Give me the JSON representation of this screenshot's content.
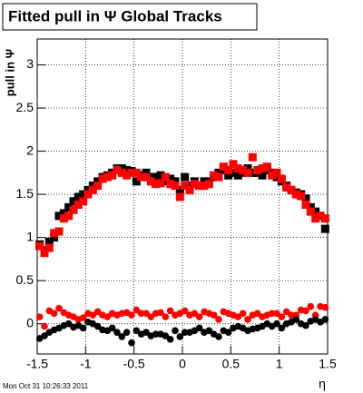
{
  "chart_data": {
    "type": "scatter",
    "title": "Fitted pull in  Ψ   Global Tracks",
    "y_label": "pull in Ψ",
    "x_label": "η",
    "timestamp": "Mon Oct 31 10:26:33 2011",
    "xlim": [
      -1.5,
      1.5
    ],
    "ylim": [
      -0.35,
      3.3
    ],
    "xticks": [
      -1.5,
      -1,
      -0.5,
      0,
      0.5,
      1,
      1.5
    ],
    "yticks": [
      0,
      0.5,
      1,
      1.5,
      2,
      2.5,
      3
    ],
    "grid": true,
    "x": [
      -1.475,
      -1.425,
      -1.375,
      -1.325,
      -1.275,
      -1.225,
      -1.175,
      -1.125,
      -1.075,
      -1.025,
      -0.975,
      -0.925,
      -0.875,
      -0.825,
      -0.775,
      -0.725,
      -0.675,
      -0.625,
      -0.575,
      -0.525,
      -0.475,
      -0.425,
      -0.375,
      -0.325,
      -0.275,
      -0.225,
      -0.175,
      -0.125,
      -0.075,
      -0.025,
      0.025,
      0.075,
      0.125,
      0.175,
      0.225,
      0.275,
      0.325,
      0.375,
      0.425,
      0.475,
      0.525,
      0.575,
      0.625,
      0.675,
      0.725,
      0.775,
      0.825,
      0.875,
      0.925,
      0.975,
      1.025,
      1.075,
      1.125,
      1.175,
      1.225,
      1.275,
      1.325,
      1.375,
      1.425,
      1.475
    ],
    "series": [
      {
        "color": "#000000",
        "marker": "square",
        "values": [
          0.92,
          0.85,
          0.95,
          1.0,
          1.25,
          1.28,
          1.35,
          1.42,
          1.47,
          1.5,
          1.55,
          1.6,
          1.65,
          1.7,
          1.72,
          1.75,
          1.8,
          1.8,
          1.78,
          1.77,
          1.65,
          1.72,
          1.75,
          1.7,
          1.7,
          1.72,
          1.65,
          1.68,
          1.65,
          1.55,
          1.7,
          1.6,
          1.65,
          1.6,
          1.65,
          1.65,
          1.7,
          1.75,
          1.78,
          1.72,
          1.75,
          1.72,
          1.75,
          1.8,
          1.75,
          1.75,
          1.72,
          1.78,
          1.75,
          1.7,
          1.65,
          1.6,
          1.55,
          1.52,
          1.5,
          1.45,
          1.35,
          1.3,
          1.25,
          1.1
        ]
      },
      {
        "color": "#ff0000",
        "marker": "square",
        "values": [
          0.9,
          0.82,
          0.88,
          1.05,
          1.07,
          1.22,
          1.25,
          1.32,
          1.38,
          1.42,
          1.5,
          1.55,
          1.6,
          1.68,
          1.7,
          1.72,
          1.78,
          1.75,
          1.72,
          1.75,
          1.75,
          1.7,
          1.7,
          1.65,
          1.62,
          1.63,
          1.7,
          1.62,
          1.6,
          1.47,
          1.6,
          1.55,
          1.62,
          1.6,
          1.6,
          1.62,
          1.72,
          1.7,
          1.82,
          1.78,
          1.85,
          1.8,
          1.78,
          1.75,
          1.93,
          1.78,
          1.8,
          1.82,
          1.72,
          1.75,
          1.68,
          1.58,
          1.55,
          1.5,
          1.48,
          1.38,
          1.3,
          1.22,
          1.25,
          1.22
        ]
      },
      {
        "color": "#ff0000",
        "marker": "circle",
        "values": [
          0.08,
          -0.03,
          0.15,
          0.12,
          0.18,
          0.13,
          0.1,
          0.08,
          0.05,
          0.07,
          0.12,
          0.1,
          0.14,
          0.1,
          0.08,
          0.12,
          0.1,
          0.12,
          0.13,
          0.1,
          0.16,
          0.12,
          0.12,
          0.08,
          0.12,
          0.13,
          0.08,
          0.15,
          0.1,
          0.12,
          0.15,
          0.1,
          0.12,
          0.08,
          0.14,
          0.12,
          0.1,
          0.05,
          0.14,
          0.12,
          0.1,
          0.08,
          0.12,
          0.05,
          0.1,
          0.12,
          0.08,
          0.1,
          0.12,
          0.12,
          0.08,
          0.14,
          0.1,
          0.1,
          0.16,
          0.15,
          0.2,
          0.1,
          0.2,
          0.19
        ]
      },
      {
        "color": "#000000",
        "marker": "circle",
        "values": [
          -0.17,
          -0.14,
          -0.1,
          -0.07,
          -0.05,
          -0.02,
          0.0,
          -0.04,
          -0.02,
          -0.05,
          0.02,
          0.0,
          -0.03,
          -0.07,
          -0.08,
          -0.05,
          -0.1,
          -0.15,
          -0.1,
          -0.22,
          -0.08,
          -0.12,
          -0.1,
          -0.14,
          -0.12,
          -0.12,
          -0.14,
          -0.18,
          -0.08,
          -0.15,
          -0.1,
          -0.1,
          -0.08,
          -0.05,
          -0.1,
          -0.08,
          -0.12,
          -0.15,
          -0.08,
          -0.1,
          -0.05,
          -0.03,
          -0.05,
          -0.08,
          -0.06,
          -0.05,
          -0.03,
          0.0,
          -0.03,
          0.0,
          -0.05,
          0.0,
          0.02,
          0.05,
          0.0,
          -0.02,
          0.03,
          0.05,
          0.02,
          0.05
        ]
      }
    ]
  }
}
